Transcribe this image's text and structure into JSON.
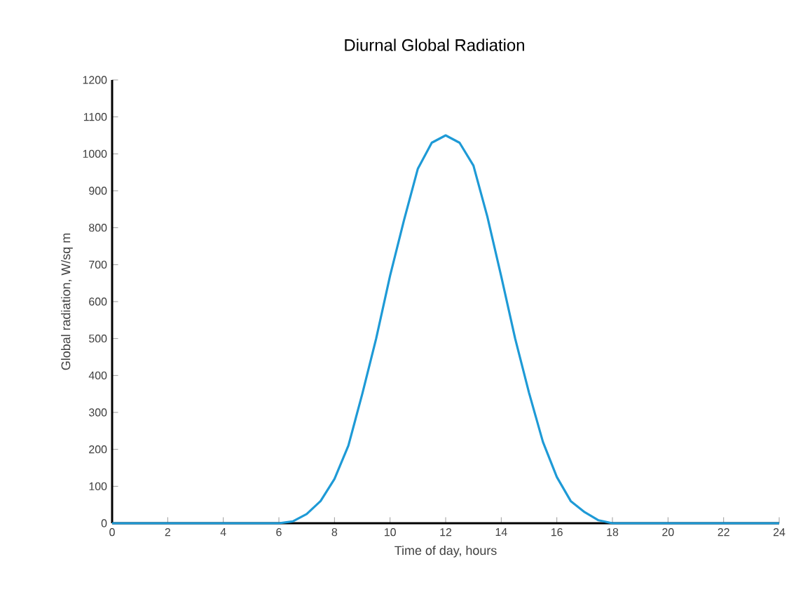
{
  "chart_data": {
    "type": "line",
    "title": "Diurnal Global Radiation",
    "xlabel": "Time of day, hours",
    "ylabel": "Global radiation, W/sq m",
    "x": [
      0,
      1,
      2,
      3,
      4,
      5,
      6,
      6.5,
      7,
      7.5,
      8,
      8.5,
      9,
      9.5,
      10,
      10.5,
      11,
      11.5,
      12,
      12.5,
      13,
      13.5,
      14,
      14.5,
      15,
      15.5,
      16,
      16.5,
      17,
      17.5,
      18,
      19,
      20,
      21,
      22,
      23,
      24
    ],
    "series": [
      {
        "color": "#1e9ad6",
        "values": [
          0,
          0,
          0,
          0,
          0,
          0,
          0,
          5,
          25,
          60,
          120,
          210,
          350,
          500,
          670,
          820,
          960,
          1030,
          1050,
          1030,
          968,
          830,
          668,
          500,
          353,
          220,
          125,
          60,
          30,
          8,
          0,
          0,
          0,
          0,
          0,
          0,
          0
        ]
      }
    ],
    "xlim": [
      0,
      24
    ],
    "xticks": [
      0,
      2,
      4,
      6,
      8,
      10,
      12,
      14,
      16,
      18,
      20,
      22,
      24
    ],
    "ylim": [
      0,
      1200
    ],
    "yticks": [
      0,
      100,
      200,
      300,
      400,
      500,
      600,
      700,
      800,
      900,
      1000,
      1100,
      1200
    ],
    "marker": "none",
    "line_style": "solid"
  }
}
